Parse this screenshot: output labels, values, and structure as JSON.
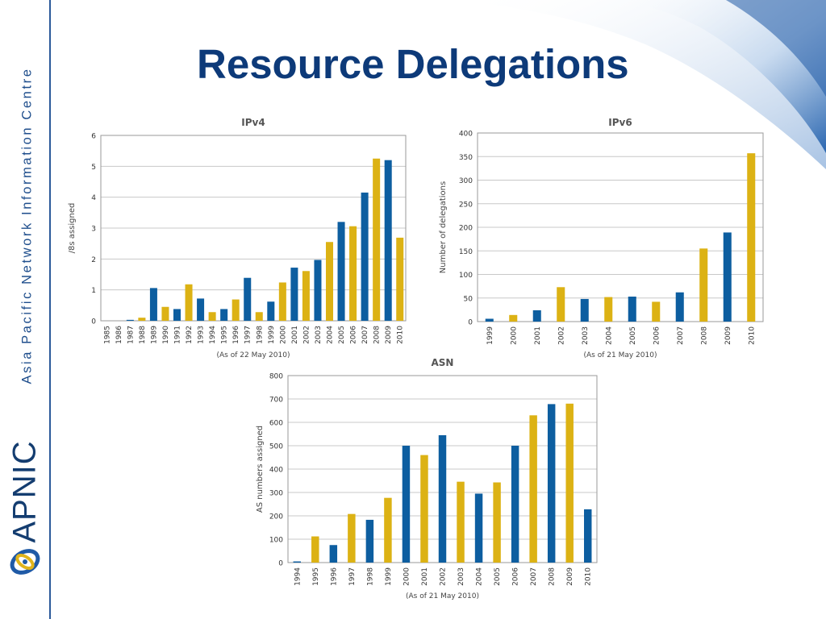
{
  "slide": {
    "title": "Resource Delegations",
    "org_name": "Asia Pacific Network Information Centre",
    "logo_text": "APNIC",
    "logo_icon": "apnic-swirl-icon"
  },
  "colors": {
    "blue": "#0d5ea0",
    "gold": "#dcb214",
    "title": "#0d3a79",
    "grid": "#c8c8c8"
  },
  "chart_data": [
    {
      "type": "bar",
      "title": "IPv4",
      "ylabel": "/8s assigned",
      "xlabel": "",
      "note": "(As of 22 May 2010)",
      "ylim": [
        0,
        6
      ],
      "yticks": [
        0,
        1,
        2,
        3,
        4,
        5,
        6
      ],
      "grid": true,
      "categories": [
        "1985",
        "1986",
        "1987",
        "1988",
        "1989",
        "1990",
        "1991",
        "1992",
        "1993",
        "1994",
        "1995",
        "1996",
        "1997",
        "1998",
        "1999",
        "2000",
        "2001",
        "2002",
        "2003",
        "2004",
        "2005",
        "2006",
        "2007",
        "2008",
        "2009",
        "2010"
      ],
      "values": [
        0,
        0,
        0.03,
        0.1,
        1.06,
        0.45,
        0.38,
        1.18,
        0.72,
        0.28,
        0.38,
        0.69,
        1.39,
        0.28,
        0.62,
        1.24,
        1.72,
        1.61,
        1.97,
        2.55,
        3.2,
        3.06,
        4.15,
        5.25,
        5.2,
        2.69
      ],
      "colors": [
        "gold",
        "gold",
        "blue",
        "gold",
        "blue",
        "gold",
        "blue",
        "gold",
        "blue",
        "gold",
        "blue",
        "gold",
        "blue",
        "gold",
        "blue",
        "gold",
        "blue",
        "gold",
        "blue",
        "gold",
        "blue",
        "gold",
        "blue",
        "gold",
        "blue",
        "gold"
      ]
    },
    {
      "type": "bar",
      "title": "IPv6",
      "ylabel": "Number of delegations",
      "xlabel": "",
      "note": "(As of 21 May 2010)",
      "ylim": [
        0,
        400
      ],
      "yticks": [
        0,
        50,
        100,
        150,
        200,
        250,
        300,
        350,
        400
      ],
      "grid": true,
      "categories": [
        "1999",
        "2000",
        "2001",
        "2002",
        "2003",
        "2004",
        "2005",
        "2006",
        "2007",
        "2008",
        "2009",
        "2010"
      ],
      "values": [
        6,
        14,
        24,
        73,
        48,
        52,
        53,
        42,
        62,
        155,
        189,
        357
      ],
      "colors": [
        "blue",
        "gold",
        "blue",
        "gold",
        "blue",
        "gold",
        "blue",
        "gold",
        "blue",
        "gold",
        "blue",
        "gold"
      ]
    },
    {
      "type": "bar",
      "title": "ASN",
      "ylabel": "AS numbers assigned",
      "xlabel": "",
      "note": "(As of 21 May 2010)",
      "ylim": [
        0,
        800
      ],
      "yticks": [
        0,
        100,
        200,
        300,
        400,
        500,
        600,
        700,
        800
      ],
      "grid": true,
      "categories": [
        "1994",
        "1995",
        "1996",
        "1997",
        "1998",
        "1999",
        "2000",
        "2001",
        "2002",
        "2003",
        "2004",
        "2005",
        "2006",
        "2007",
        "2008",
        "2009",
        "2010"
      ],
      "values": [
        5,
        112,
        75,
        208,
        183,
        277,
        500,
        460,
        545,
        346,
        295,
        343,
        500,
        630,
        678,
        680,
        228
      ],
      "colors": [
        "blue",
        "gold",
        "blue",
        "gold",
        "blue",
        "gold",
        "blue",
        "gold",
        "blue",
        "gold",
        "blue",
        "gold",
        "blue",
        "gold",
        "blue",
        "gold",
        "blue"
      ]
    }
  ]
}
